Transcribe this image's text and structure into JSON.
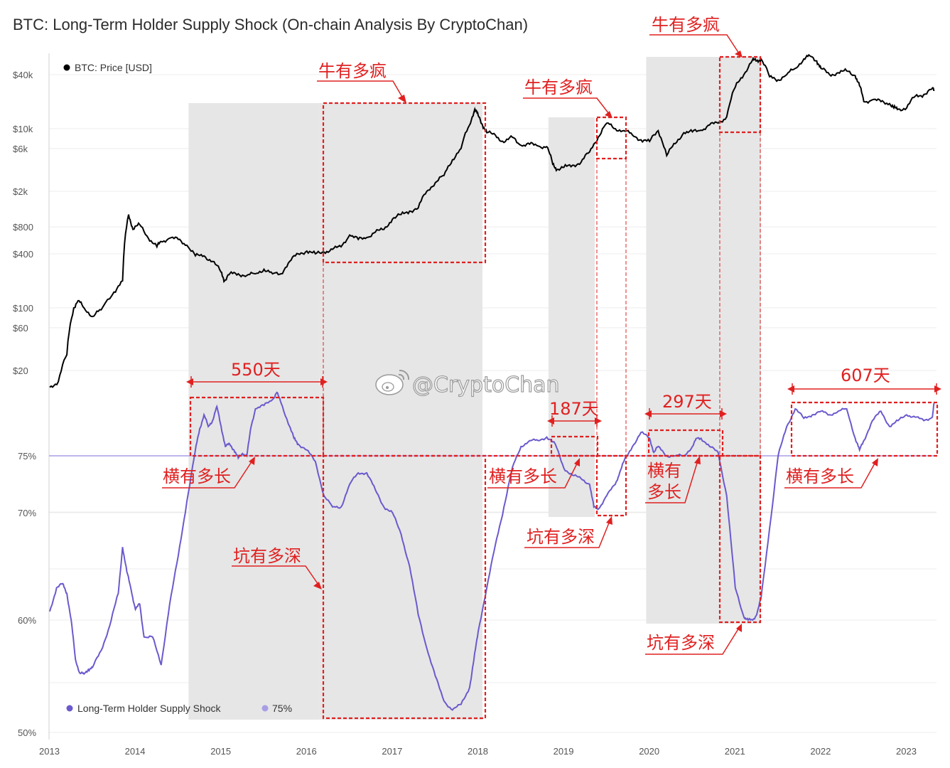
{
  "title": "BTC: Long-Term Holder Supply Shock (On-chain Analysis By CryptoChan)",
  "watermark": "@CryptoChan",
  "colors": {
    "price": "#000000",
    "shock": "#6a5acd",
    "threshold": "#a79de6",
    "shade": "#e6e6e6",
    "annotation": "#e02020",
    "grid": "#ececec"
  },
  "chart_data": [
    {
      "type": "line",
      "legend_position": "top-left",
      "legend": [
        {
          "name": "BTC: Price [USD]",
          "color": "#000000"
        }
      ],
      "y_scale": "log",
      "y_ticks": [
        "$40k",
        "$10k",
        "$6k",
        "$2k",
        "$800",
        "$400",
        "$100",
        "$60",
        "$20"
      ],
      "y_tick_values": [
        40000,
        10000,
        6000,
        2000,
        800,
        400,
        100,
        60,
        20
      ],
      "x_ticks": [
        "2013",
        "2014",
        "2015",
        "2016",
        "2017",
        "2018",
        "2019",
        "2020",
        "2021",
        "2022",
        "2023"
      ],
      "series": [
        {
          "name": "BTC: Price [USD]",
          "x": [
            2013.0,
            2013.1,
            2013.2,
            2013.28,
            2013.33,
            2013.4,
            2013.5,
            2013.6,
            2013.75,
            2013.85,
            2013.92,
            2013.97,
            2014.05,
            2014.15,
            2014.25,
            2014.3,
            2014.4,
            2014.5,
            2014.6,
            2014.7,
            2014.8,
            2014.9,
            2015.0,
            2015.04,
            2015.1,
            2015.2,
            2015.3,
            2015.4,
            2015.5,
            2015.6,
            2015.7,
            2015.8,
            2015.9,
            2016.0,
            2016.1,
            2016.2,
            2016.3,
            2016.4,
            2016.5,
            2016.6,
            2016.7,
            2016.8,
            2016.9,
            2017.0,
            2017.1,
            2017.2,
            2017.3,
            2017.4,
            2017.5,
            2017.6,
            2017.7,
            2017.8,
            2017.9,
            2017.96,
            2018.0,
            2018.05,
            2018.1,
            2018.2,
            2018.3,
            2018.4,
            2018.5,
            2018.6,
            2018.7,
            2018.8,
            2018.87,
            2018.92,
            2019.0,
            2019.1,
            2019.2,
            2019.3,
            2019.4,
            2019.5,
            2019.6,
            2019.7,
            2019.8,
            2019.9,
            2020.0,
            2020.1,
            2020.2,
            2020.3,
            2020.4,
            2020.5,
            2020.6,
            2020.7,
            2020.8,
            2020.9,
            2021.0,
            2021.1,
            2021.2,
            2021.25,
            2021.3,
            2021.4,
            2021.5,
            2021.6,
            2021.7,
            2021.8,
            2021.87,
            2021.95,
            2022.0,
            2022.1,
            2022.2,
            2022.3,
            2022.4,
            2022.45,
            2022.5,
            2022.6,
            2022.7,
            2022.8,
            2022.85,
            2022.9,
            2023.0,
            2023.1,
            2023.2,
            2023.3,
            2023.32
          ],
          "values": [
            13,
            15,
            30,
            100,
            120,
            100,
            80,
            95,
            150,
            200,
            1100,
            750,
            850,
            600,
            480,
            550,
            600,
            580,
            500,
            380,
            380,
            330,
            250,
            200,
            240,
            240,
            230,
            240,
            270,
            240,
            240,
            330,
            400,
            430,
            400,
            420,
            450,
            480,
            650,
            580,
            610,
            700,
            750,
            980,
            1100,
            1200,
            1300,
            2000,
            2500,
            3000,
            4500,
            6000,
            11000,
            16500,
            14000,
            11000,
            9000,
            8500,
            7000,
            8000,
            6500,
            6700,
            6400,
            6300,
            4000,
            3500,
            3700,
            3900,
            4200,
            5500,
            8000,
            11500,
            10000,
            9500,
            8500,
            7500,
            7200,
            9500,
            5000,
            6800,
            9000,
            9200,
            9600,
            11000,
            11500,
            13500,
            29000,
            40000,
            58000,
            57000,
            60000,
            38000,
            35000,
            40000,
            47000,
            60000,
            65000,
            57000,
            47000,
            40000,
            42000,
            44000,
            39000,
            30000,
            20000,
            21000,
            20000,
            19000,
            17000,
            16500,
            17000,
            23000,
            24000,
            28000,
            27000
          ]
        }
      ]
    },
    {
      "type": "line",
      "legend_position": "bottom-left",
      "legend": [
        {
          "name": "Long-Term Holder Supply Shock",
          "color": "#6a5acd"
        },
        {
          "name": "75%",
          "color": "#a79de6"
        }
      ],
      "y_ticks": [
        "75%",
        "70%",
        "60%",
        "50%"
      ],
      "y_tick_values": [
        75,
        70,
        60,
        50
      ],
      "threshold": 75,
      "series": [
        {
          "name": "Long-Term Holder Supply Shock",
          "x": [
            2013.0,
            2013.08,
            2013.15,
            2013.2,
            2013.25,
            2013.3,
            2013.35,
            2013.4,
            2013.45,
            2013.5,
            2013.6,
            2013.7,
            2013.8,
            2013.85,
            2013.9,
            2013.95,
            2014.0,
            2014.05,
            2014.1,
            2014.2,
            2014.3,
            2014.4,
            2014.5,
            2014.6,
            2014.7,
            2014.75,
            2014.8,
            2014.85,
            2014.9,
            2014.95,
            2015.0,
            2015.05,
            2015.1,
            2015.15,
            2015.2,
            2015.25,
            2015.3,
            2015.35,
            2015.4,
            2015.5,
            2015.6,
            2015.65,
            2015.7,
            2015.8,
            2015.85,
            2015.9,
            2016.0,
            2016.1,
            2016.2,
            2016.3,
            2016.4,
            2016.5,
            2016.6,
            2016.7,
            2016.8,
            2016.9,
            2017.0,
            2017.1,
            2017.2,
            2017.3,
            2017.4,
            2017.5,
            2017.6,
            2017.7,
            2017.8,
            2017.9,
            2017.95,
            2018.0,
            2018.1,
            2018.2,
            2018.3,
            2018.4,
            2018.5,
            2018.6,
            2018.7,
            2018.8,
            2018.9,
            2019.0,
            2019.1,
            2019.2,
            2019.3,
            2019.35,
            2019.4,
            2019.5,
            2019.6,
            2019.65,
            2019.7,
            2019.8,
            2019.9,
            2020.0,
            2020.05,
            2020.1,
            2020.2,
            2020.3,
            2020.4,
            2020.5,
            2020.55,
            2020.6,
            2020.7,
            2020.8,
            2020.9,
            2021.0,
            2021.1,
            2021.15,
            2021.2,
            2021.25,
            2021.3,
            2021.4,
            2021.5,
            2021.6,
            2021.7,
            2021.8,
            2021.9,
            2022.0,
            2022.1,
            2022.2,
            2022.3,
            2022.4,
            2022.45,
            2022.5,
            2022.6,
            2022.7,
            2022.8,
            2022.9,
            2023.0,
            2023.1,
            2023.2,
            2023.3,
            2023.32
          ],
          "values": [
            60.8,
            63.0,
            63.4,
            62.5,
            60.0,
            56.5,
            55.3,
            55.2,
            55.6,
            55.8,
            57.3,
            59.5,
            62.5,
            66.8,
            64.5,
            62.8,
            61.0,
            61.5,
            58.5,
            58.5,
            56.0,
            61.5,
            66.0,
            71.0,
            75.5,
            77.3,
            78.5,
            77.5,
            78.0,
            79.2,
            77.5,
            75.8,
            76.0,
            75.5,
            74.8,
            75.2,
            75.0,
            77.5,
            79.0,
            79.3,
            79.8,
            80.4,
            79.5,
            77.5,
            76.5,
            76.0,
            75.5,
            74.5,
            71.5,
            70.5,
            70.5,
            72.5,
            73.5,
            73.5,
            72.0,
            70.5,
            70.0,
            68.0,
            65.0,
            60.5,
            57.5,
            55.0,
            52.8,
            52.0,
            52.5,
            54.0,
            56.5,
            59.0,
            63.0,
            67.0,
            70.5,
            74.0,
            75.8,
            76.3,
            76.3,
            76.6,
            76.0,
            73.9,
            73.3,
            73.0,
            72.5,
            70.5,
            70.3,
            71.5,
            72.5,
            73.5,
            74.5,
            75.8,
            77.0,
            76.5,
            75.3,
            75.8,
            75.0,
            75.0,
            75.0,
            75.8,
            76.5,
            76.5,
            75.8,
            75.3,
            71.5,
            63.0,
            60.3,
            60.0,
            60.0,
            60.5,
            62.0,
            68.5,
            75.0,
            77.5,
            79.0,
            78.2,
            78.5,
            78.8,
            78.5,
            78.8,
            79.0,
            76.5,
            75.5,
            76.3,
            78.0,
            78.8,
            77.5,
            78.0,
            78.5,
            78.3,
            78.0,
            78.3,
            79.5
          ]
        }
      ]
    }
  ],
  "annotations": {
    "bull_label": "牛有多疯",
    "sideways_label": "横有多长",
    "sideways_label_line1": "横有",
    "sideways_label_line2": "多长",
    "pit_label": "坑有多深",
    "days_550": "550天",
    "days_187": "187天",
    "days_297": "297天",
    "days_607": "607天"
  }
}
